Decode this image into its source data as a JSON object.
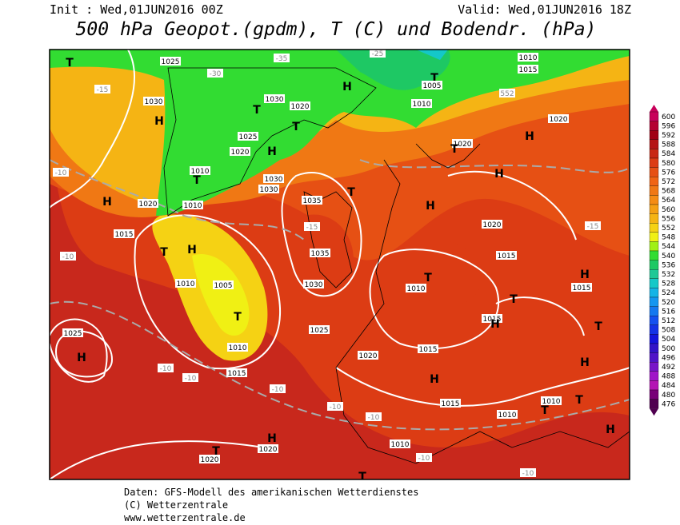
{
  "header": {
    "init": "Init : Wed,01JUN2016 00Z",
    "valid": "Valid: Wed,01JUN2016 18Z",
    "title": "500 hPa Geopot.(gpdm), T (C) und Bodendr. (hPa)"
  },
  "legend": {
    "levels": [
      600,
      596,
      592,
      588,
      584,
      580,
      576,
      572,
      568,
      564,
      560,
      556,
      552,
      548,
      544,
      540,
      536,
      532,
      528,
      524,
      520,
      516,
      512,
      508,
      504,
      500,
      496,
      492,
      488,
      484,
      480,
      476
    ]
  },
  "map": {
    "labels": [
      "T",
      "1025",
      "-30",
      "-35",
      "H",
      "-25",
      "1010",
      "1015",
      "T",
      "1005",
      "1010",
      "552",
      "-15",
      "1030",
      "H",
      "T",
      "1030",
      "1020",
      "T",
      "H",
      "1025",
      "1020",
      "1010",
      "T",
      "1030",
      "1030",
      "1020",
      "H",
      "1020",
      "T",
      "H",
      "-10",
      "H",
      "1020",
      "1010",
      "1035",
      "T",
      "H",
      "1020",
      "-15",
      "1015",
      "T",
      "H",
      "-15",
      "1035",
      "-10",
      "1005",
      "1010",
      "1030",
      "1015",
      "T",
      "1010",
      "H",
      "1015",
      "T",
      "1025",
      "T",
      "1015",
      "H",
      "T",
      "1025",
      "H",
      "1010",
      "1020",
      "1015",
      "H",
      "1015",
      "-10",
      "-10",
      "-10",
      "H",
      "T",
      "1010",
      "T",
      "1015",
      "-10",
      "-10",
      "1010",
      "H",
      "H",
      "1020",
      "T",
      "1020",
      "1010",
      "-10",
      "-10",
      "T"
    ]
  },
  "footer": {
    "lines": [
      "Daten: GFS-Modell des amerikanischen Wetterdienstes",
      "(C) Wetterzentrale",
      "www.wetterzentrale.de"
    ]
  }
}
